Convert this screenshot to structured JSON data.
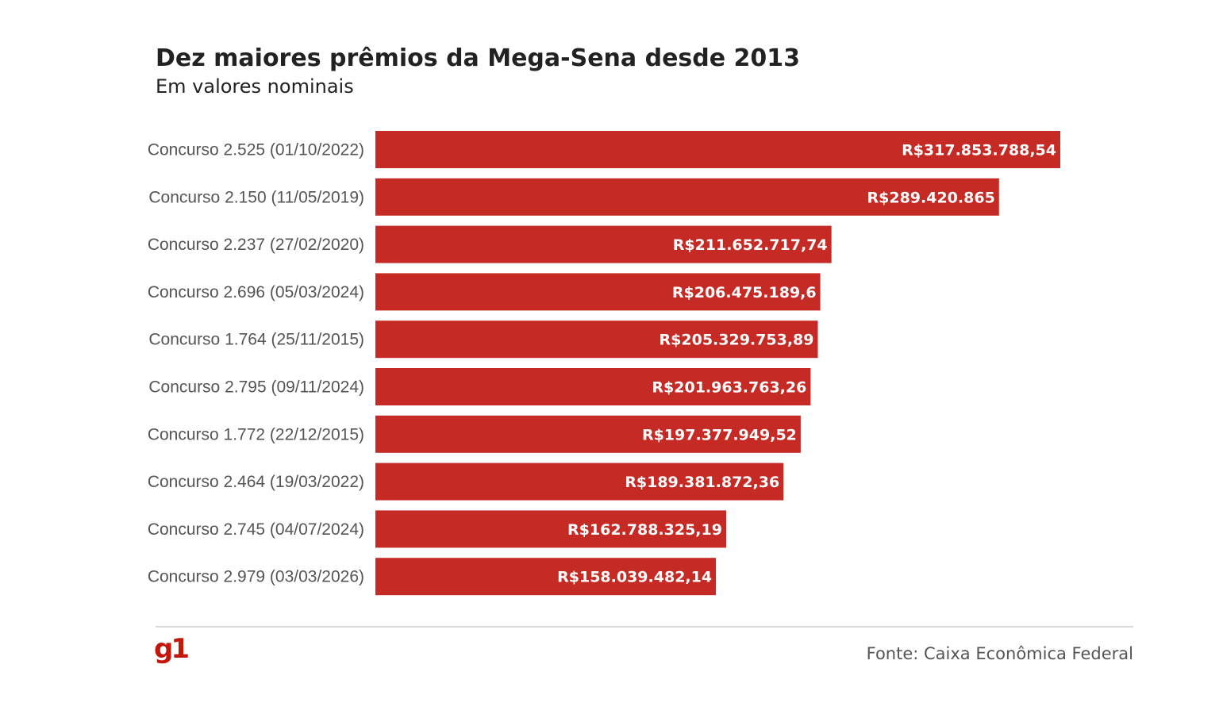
{
  "colors": {
    "bar": "#c62a25",
    "logo": "#c4170c"
  },
  "logo_text": "g1",
  "source": "Fonte: Caixa Econômica Federal",
  "chart_data": {
    "type": "bar",
    "orientation": "horizontal",
    "title": "Dez maiores prêmios da Mega-Sena desde 2013",
    "subtitle": "Em valores nominais",
    "xlabel": "",
    "ylabel": "",
    "grid": false,
    "xlim": [
      0,
      317853788.54
    ],
    "categories": [
      "Concurso 2.525 (01/10/2022)",
      "Concurso 2.150 (11/05/2019)",
      "Concurso 2.237 (27/02/2020)",
      "Concurso 2.696 (05/03/2024)",
      "Concurso 1.764 (25/11/2015)",
      "Concurso 2.795 (09/11/2024)",
      "Concurso 1.772 (22/12/2015)",
      "Concurso 2.464 (19/03/2022)",
      "Concurso 2.745 (04/07/2024)",
      "Concurso 2.979 (03/03/2026)"
    ],
    "values": [
      317853788.54,
      289420865,
      211652717.74,
      206475189.6,
      205329753.89,
      201963763.26,
      197377949.52,
      189381872.36,
      162788325.19,
      158039482.14
    ],
    "value_labels": [
      "R$317.853.788,54",
      "R$289.420.865",
      "R$211.652.717,74",
      "R$206.475.189,6",
      "R$205.329.753,89",
      "R$201.963.763,26",
      "R$197.377.949,52",
      "R$189.381.872,36",
      "R$162.788.325,19",
      "R$158.039.482,14"
    ]
  }
}
